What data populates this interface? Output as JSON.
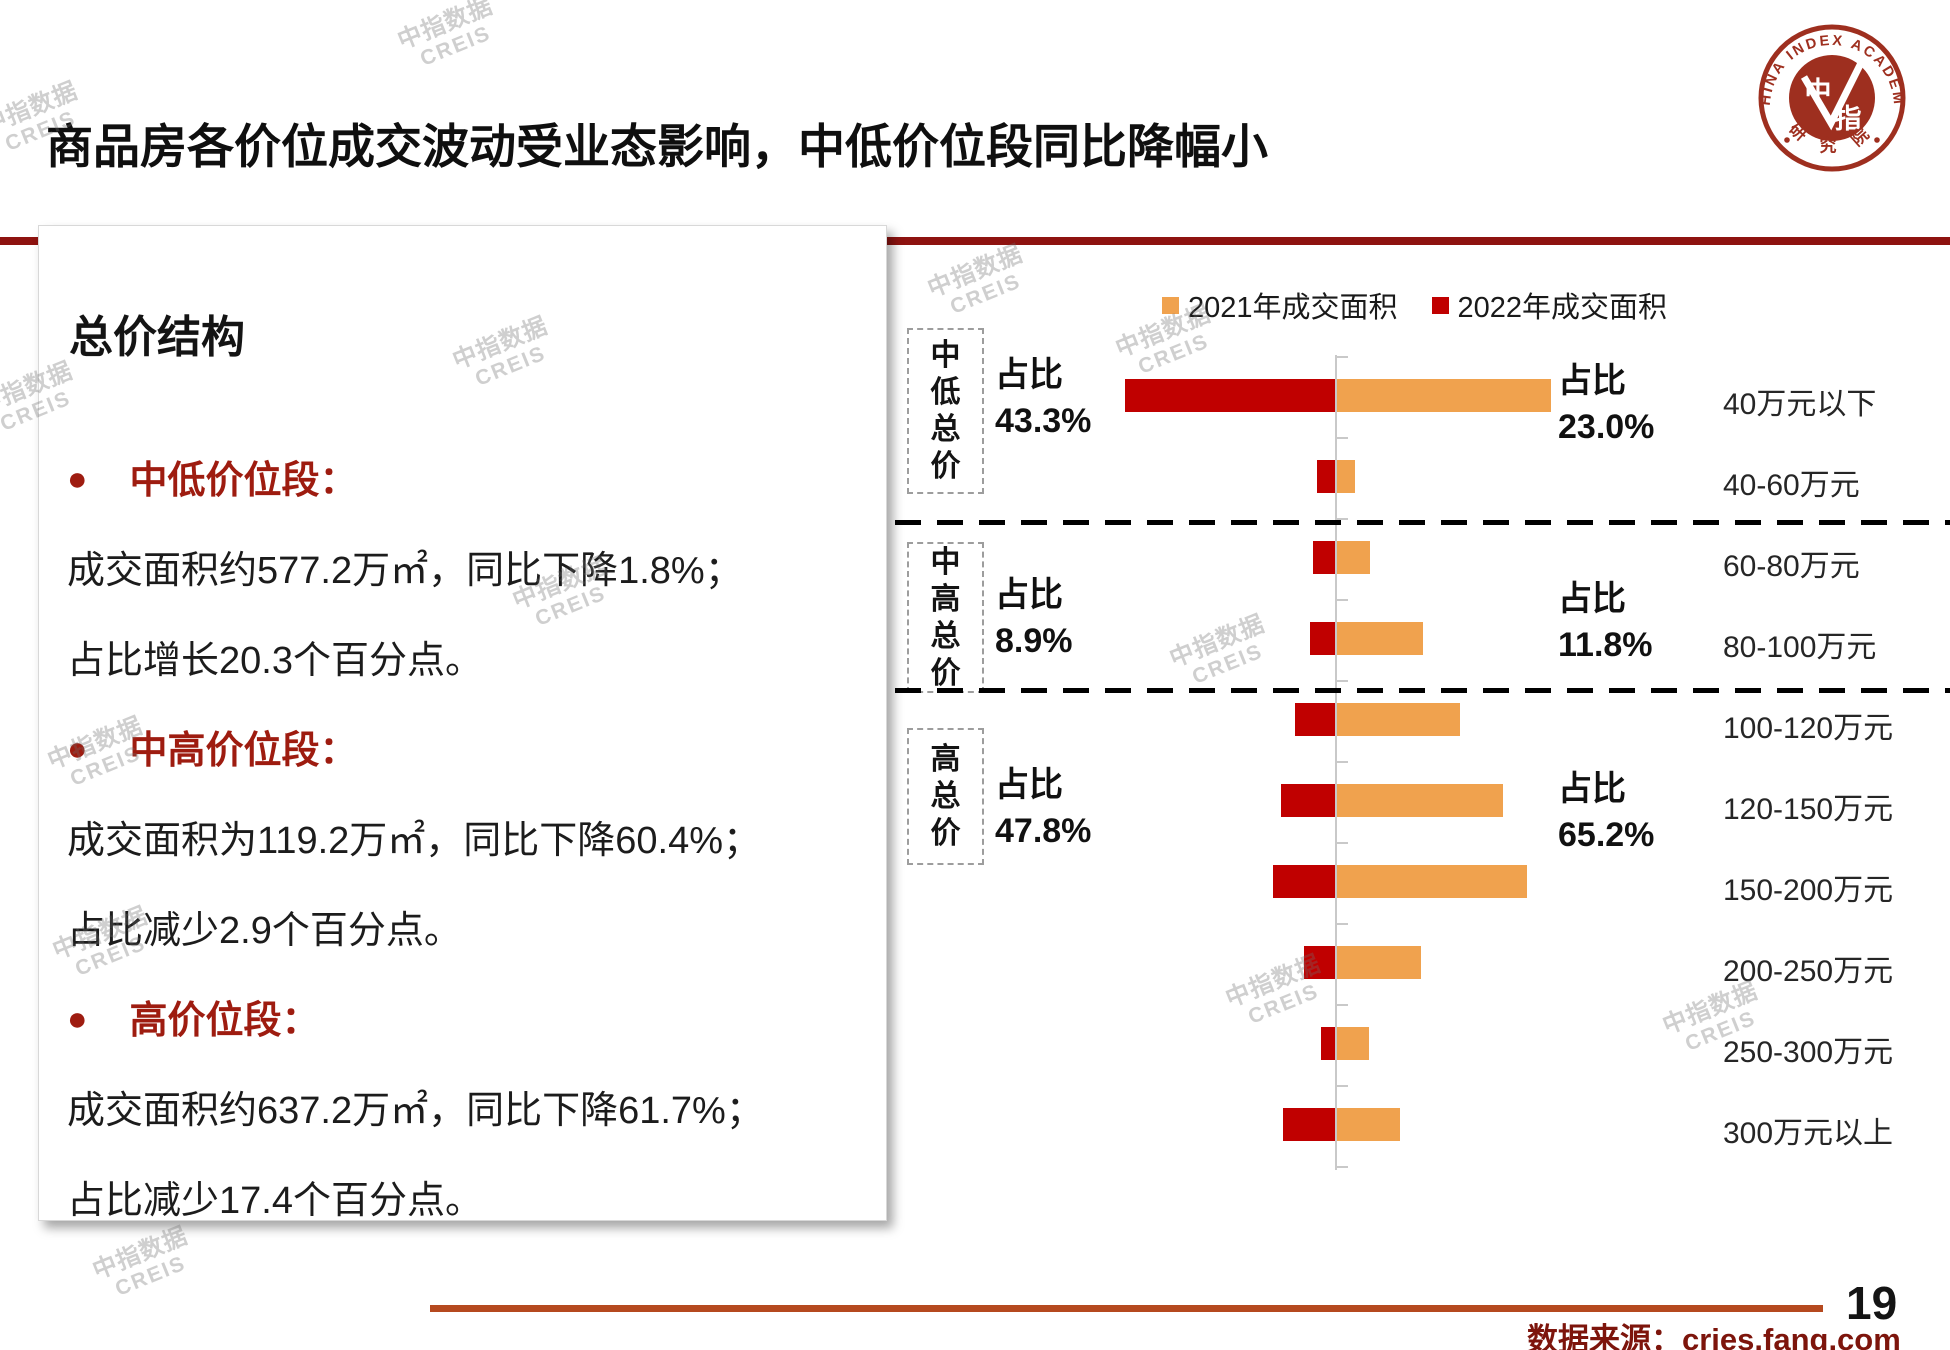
{
  "slide": {
    "title": "商品房各价位成交波动受业态影响，中低价位段同比降幅小",
    "page_number": "19",
    "source": "数据来源：cries.fang.com",
    "watermark": {
      "line1": "中指数据",
      "line2": "CREIS"
    }
  },
  "logo": {
    "ring_text": "CHINA INDEX ACADEMY",
    "center_char_top": "中",
    "center_char_bottom": "指",
    "bottom_text": "研 究 院",
    "color": "#9E2F1F"
  },
  "panel": {
    "heading": "总价结构",
    "bullets": [
      {
        "label": "中低价位段：",
        "lines": [
          "成交面积约577.2万㎡，同比下降1.8%；",
          "占比增长20.3个百分点。"
        ]
      },
      {
        "label": "中高价位段：",
        "lines": [
          "成交面积为119.2万㎡，同比下降60.4%；",
          "占比减少2.9个百分点。"
        ]
      },
      {
        "label": "高价位段：",
        "lines": [
          "成交面积约637.2万㎡，同比下降61.7%；",
          "占比减少17.4个百分点。"
        ]
      }
    ]
  },
  "chart_data": {
    "type": "bar",
    "orientation": "horizontal-diverging",
    "unit": "万㎡ (estimated from bar lengths; no numeric axis labels shown)",
    "values_estimated": true,
    "categories": [
      "40万元以下",
      "40-60万元",
      "60-80万元",
      "80-100万元",
      "100-120万元",
      "120-150万元",
      "150-200万元",
      "200-250万元",
      "250-300万元",
      "300万元以上"
    ],
    "series": [
      {
        "name": "2021年成交面积",
        "color": "#F0A24E",
        "direction": "right",
        "values": [
          543,
          45,
          83,
          218,
          311,
          419,
          480,
          213,
          82,
          159
        ]
      },
      {
        "name": "2022年成交面积",
        "color": "#C00000",
        "direction": "left",
        "values": [
          532,
          45,
          55,
          64,
          100,
          136,
          156,
          79,
          36,
          131
        ]
      }
    ],
    "share_label": "占比",
    "groups": [
      {
        "label": "中低总价",
        "row_start": 0,
        "row_end": 1,
        "share_2022": "43.3%",
        "share_2021": "23.0%"
      },
      {
        "label": "中高总价",
        "row_start": 2,
        "row_end": 3,
        "share_2022": "8.9%",
        "share_2021": "11.8%"
      },
      {
        "label": "高总价",
        "row_start": 4,
        "row_end": 9,
        "share_2022": "47.8%",
        "share_2021": "65.2%"
      }
    ],
    "legend_position": "top",
    "grid": false
  },
  "colors": {
    "red_2022": "#C00000",
    "orange_2021": "#F0A24E",
    "dark_red_text": "#9E1C10",
    "title_rule": "#8E1310",
    "footer_line": "#B5491F",
    "source_text": "#7D150C",
    "axis": "#C9C9C9"
  }
}
